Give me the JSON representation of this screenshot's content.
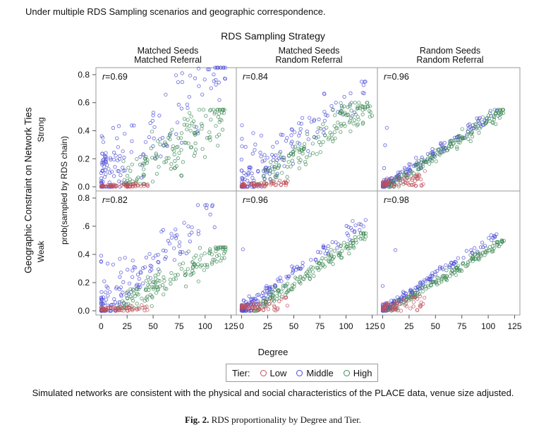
{
  "header_note": "Under multiple RDS Sampling scenarios and geographic correspondence.",
  "footer_note": "Simulated networks are consistent with the physical and social characteristics of the PLACE data, venue size adjusted.",
  "caption": {
    "label": "Fig. 2.",
    "text": "RDS proportionality by Degree and Tier."
  },
  "chart_data": {
    "type": "scatter",
    "column_title": "RDS Sampling Strategy",
    "columns": [
      {
        "line1": "Matched Seeds",
        "line2": "Matched Referral"
      },
      {
        "line1": "Matched Seeds",
        "line2": "Random Referral"
      },
      {
        "line1": "Random Seeds",
        "line2": "Random Referral"
      }
    ],
    "row_title": "Geographic Constraint on Network Ties",
    "rows": [
      "Strong",
      "Weak"
    ],
    "xlabel": "Degree",
    "ylabel": "prob(sampled by RDS chain)",
    "x_ticks": [
      "0",
      "25",
      "50",
      "75",
      "100",
      "125"
    ],
    "y_ticks": {
      "Strong": [
        "0.0",
        "0.2",
        "0.4",
        "0.6",
        "0.8"
      ],
      "Weak": [
        "0.0",
        "0.2",
        "0.4",
        ".6",
        "0.8"
      ]
    },
    "xlim": [
      -5,
      130
    ],
    "ylim": [
      -0.03,
      0.85
    ],
    "legend": {
      "title": "Tier:",
      "placement": "bottom-center",
      "entries": [
        {
          "name": "Low",
          "color": "#c0505a"
        },
        {
          "name": "Middle",
          "color": "#4b4bd6"
        },
        {
          "name": "High",
          "color": "#3e8a56"
        }
      ]
    },
    "panels": [
      {
        "row": "Strong",
        "column": "Matched Seeds / Matched Referral",
        "r": "0.69",
        "series": {
          "Low": {
            "degree_range": [
              0,
              45
            ],
            "prob_range": [
              0.0,
              0.03
            ]
          },
          "Middle": {
            "degree_range": [
              0,
              120
            ],
            "prob_range": [
              0.0,
              0.85
            ],
            "note": "dense near degree 0-25 up to 0.45, sparse high cluster degree 60-115 at 0.4-0.85"
          },
          "High": {
            "degree_range": [
              20,
              120
            ],
            "prob_range": [
              0.02,
              0.55
            ]
          }
        }
      },
      {
        "row": "Strong",
        "column": "Matched Seeds / Random Referral",
        "r": "0.84",
        "series": {
          "Low": {
            "degree_range": [
              0,
              45
            ],
            "prob_range": [
              0.0,
              0.05
            ]
          },
          "Middle": {
            "degree_range": [
              0,
              120
            ],
            "prob_range": [
              0.0,
              0.75
            ]
          },
          "High": {
            "degree_range": [
              15,
              125
            ],
            "prob_range": [
              0.02,
              0.6
            ]
          }
        }
      },
      {
        "row": "Strong",
        "column": "Random Seeds / Random Referral",
        "r": "0.96",
        "series": {
          "Low": {
            "degree_range": [
              0,
              40
            ],
            "prob_range": [
              0.0,
              0.12
            ]
          },
          "Middle": {
            "degree_range": [
              0,
              110
            ],
            "prob_range": [
              0.0,
              0.55
            ]
          },
          "High": {
            "degree_range": [
              5,
              115
            ],
            "prob_range": [
              0.0,
              0.55
            ]
          }
        }
      },
      {
        "row": "Weak",
        "column": "Matched Seeds / Matched Referral",
        "r": "0.82",
        "series": {
          "Low": {
            "degree_range": [
              0,
              45
            ],
            "prob_range": [
              0.0,
              0.05
            ]
          },
          "Middle": {
            "degree_range": [
              0,
              110
            ],
            "prob_range": [
              0.0,
              0.75
            ]
          },
          "High": {
            "degree_range": [
              15,
              120
            ],
            "prob_range": [
              0.02,
              0.45
            ]
          }
        }
      },
      {
        "row": "Weak",
        "column": "Matched Seeds / Random Referral",
        "r": "0.96",
        "series": {
          "Low": {
            "degree_range": [
              0,
              45
            ],
            "prob_range": [
              0.0,
              0.1
            ]
          },
          "Middle": {
            "degree_range": [
              0,
              120
            ],
            "prob_range": [
              0.0,
              0.65
            ]
          },
          "High": {
            "degree_range": [
              10,
              120
            ],
            "prob_range": [
              0.0,
              0.55
            ]
          }
        }
      },
      {
        "row": "Weak",
        "column": "Random Seeds / Random Referral",
        "r": "0.98",
        "series": {
          "Low": {
            "degree_range": [
              0,
              40
            ],
            "prob_range": [
              0.0,
              0.12
            ]
          },
          "Middle": {
            "degree_range": [
              0,
              110
            ],
            "prob_range": [
              0.0,
              0.55
            ]
          },
          "High": {
            "degree_range": [
              5,
              115
            ],
            "prob_range": [
              0.0,
              0.5
            ]
          }
        }
      }
    ]
  }
}
